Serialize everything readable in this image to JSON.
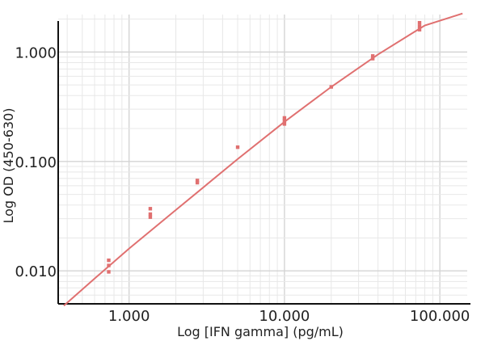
{
  "chart_data": {
    "type": "scatter",
    "xlabel": "Log [IFN gamma] (pg/mL)",
    "ylabel": "Log OD (450-630)",
    "x_scale": "log",
    "y_scale": "log",
    "xlim": [
      350,
      150000
    ],
    "ylim": [
      0.005,
      2.2
    ],
    "x_ticks": [
      {
        "value": 1000,
        "label": "1.000"
      },
      {
        "value": 10000,
        "label": "10.000"
      },
      {
        "value": 100000,
        "label": "100.000"
      }
    ],
    "y_ticks": [
      {
        "value": 0.01,
        "label": "0.010"
      },
      {
        "value": 0.1,
        "label": "0.100"
      },
      {
        "value": 1,
        "label": "1.000"
      }
    ],
    "grid": true,
    "series": [
      {
        "kind": "points",
        "color": "#e07070",
        "points": [
          {
            "x": 740,
            "y": 0.0125
          },
          {
            "x": 740,
            "y": 0.0112
          },
          {
            "x": 740,
            "y": 0.0098
          },
          {
            "x": 1370,
            "y": 0.037
          },
          {
            "x": 1370,
            "y": 0.033
          },
          {
            "x": 1370,
            "y": 0.031
          },
          {
            "x": 2750,
            "y": 0.067
          },
          {
            "x": 2750,
            "y": 0.064
          },
          {
            "x": 5000,
            "y": 0.135
          },
          {
            "x": 10000,
            "y": 0.25
          },
          {
            "x": 10000,
            "y": 0.235
          },
          {
            "x": 10000,
            "y": 0.22
          },
          {
            "x": 20000,
            "y": 0.48
          },
          {
            "x": 37000,
            "y": 0.92
          },
          {
            "x": 37000,
            "y": 0.87
          },
          {
            "x": 74000,
            "y": 1.85
          },
          {
            "x": 74000,
            "y": 1.72
          },
          {
            "x": 74000,
            "y": 1.6
          }
        ]
      },
      {
        "kind": "fit-line",
        "color": "#e07070",
        "x": [
          380,
          600,
          1000,
          2000,
          5000,
          10000,
          20000,
          40000,
          80000,
          140000
        ],
        "y": [
          0.0048,
          0.0085,
          0.016,
          0.036,
          0.105,
          0.23,
          0.48,
          0.95,
          1.75,
          2.25
        ]
      }
    ]
  }
}
